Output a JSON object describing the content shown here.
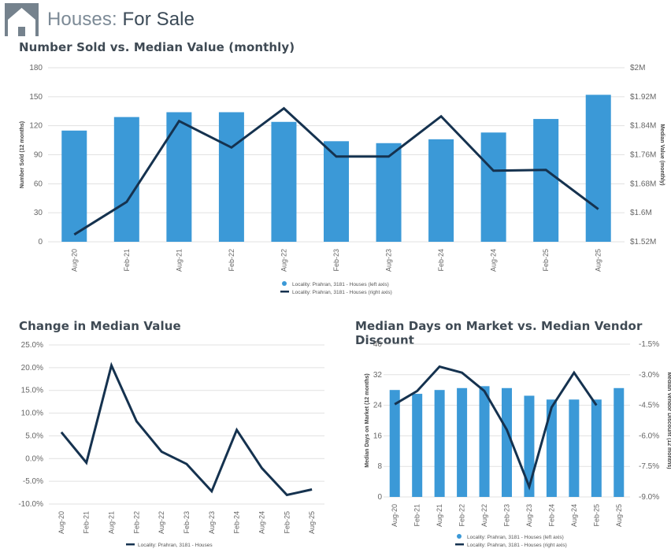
{
  "header": {
    "title_light": "Houses:",
    "title_bold": "For Sale",
    "icon": "house-icon"
  },
  "colors": {
    "bar": "#3b99d7",
    "line": "#15324f",
    "grid": "#e1e1e1",
    "axis_text": "#666666",
    "title": "#3f4a54"
  },
  "chart_data": [
    {
      "id": "sold-vs-value",
      "type": "bar+line",
      "title": "Number Sold vs. Median Value (monthly)",
      "categories": [
        "Aug-20",
        "Feb-21",
        "Aug-21",
        "Feb-22",
        "Aug-22",
        "Feb-23",
        "Aug-23",
        "Feb-24",
        "Aug-24",
        "Feb-25",
        "Aug-25"
      ],
      "ylabel": "Number Sold (12 months)",
      "y2label": "Median Value (monthly)",
      "ylim": [
        0,
        180
      ],
      "yticks": [
        0,
        30,
        60,
        90,
        120,
        150,
        180
      ],
      "ytick_labels": [
        "0",
        "30",
        "60",
        "90",
        "120",
        "150",
        "180"
      ],
      "y2lim": [
        1.52,
        2.0
      ],
      "y2ticks": [
        1.52,
        1.6,
        1.68,
        1.76,
        1.84,
        1.92,
        2.0
      ],
      "y2tick_labels": [
        "$1.52M",
        "$1.6M",
        "$1.68M",
        "$1.76M",
        "$1.84M",
        "$1.92M",
        "$2M"
      ],
      "series": [
        {
          "name": "Locality: Prahran, 3181 - Houses (left axis)",
          "type": "bar",
          "axis": "left",
          "values": [
            115,
            129,
            134,
            134,
            124,
            104,
            102,
            106,
            113,
            127,
            152
          ]
        },
        {
          "name": "Locality: Prahran, 3181 - Houses (right axis)",
          "type": "line",
          "axis": "right",
          "values": [
            1.54,
            1.63,
            1.853,
            1.78,
            1.888,
            1.755,
            1.755,
            1.866,
            1.716,
            1.718,
            1.61
          ]
        }
      ],
      "legend_position": "bottom-center"
    },
    {
      "id": "change-median",
      "type": "line",
      "title": "Change in Median Value",
      "categories": [
        "Aug-20",
        "Feb-21",
        "Aug-21",
        "Feb-22",
        "Aug-22",
        "Feb-23",
        "Aug-23",
        "Feb-24",
        "Aug-24",
        "Feb-25",
        "Aug-25"
      ],
      "ylim": [
        -10,
        25
      ],
      "yticks": [
        -10,
        -5,
        0,
        5,
        10,
        15,
        20,
        25
      ],
      "ytick_labels": [
        "-10.0%",
        "-5.0%",
        "0.0%",
        "5.0%",
        "10.0%",
        "15.0%",
        "20.0%",
        "25.0%"
      ],
      "series": [
        {
          "name": "Locality: Prahran, 3181 - Houses",
          "type": "line",
          "values": [
            5.8,
            -0.9,
            20.5,
            8.2,
            1.5,
            -1.2,
            -7.2,
            6.3,
            -2.1,
            -8.0,
            -6.8
          ]
        }
      ],
      "legend_position": "bottom-center"
    },
    {
      "id": "days-vs-discount",
      "type": "bar+line",
      "title": "Median Days on Market vs. Median Vendor Discount",
      "categories": [
        "Aug-20",
        "Feb-21",
        "Aug-21",
        "Feb-22",
        "Aug-22",
        "Feb-23",
        "Aug-23",
        "Feb-24",
        "Aug-24",
        "Feb-25",
        "Aug-25"
      ],
      "ylabel": "Median Days on Market (12 months)",
      "y2label": "Median Vendor Discount (12 months)",
      "ylim": [
        0,
        40
      ],
      "yticks": [
        0,
        8,
        16,
        24,
        32,
        40
      ],
      "ytick_labels": [
        "0",
        "8",
        "16",
        "24",
        "32",
        "40"
      ],
      "y2lim": [
        -9.0,
        -1.5
      ],
      "y2ticks": [
        -9.0,
        -7.5,
        -6.0,
        -4.5,
        -3.0,
        -1.5
      ],
      "y2tick_labels": [
        "-9.0%",
        "-7.5%",
        "-6.0%",
        "-4.5%",
        "-3.0%",
        "-1.5%"
      ],
      "series": [
        {
          "name": "Locality: Prahran, 3181 - Houses (left axis)",
          "type": "bar",
          "axis": "left",
          "values": [
            28,
            27,
            28,
            28.5,
            29,
            28.5,
            26.5,
            25.5,
            25.5,
            25.5,
            28.5
          ]
        },
        {
          "name": "Locality: Prahran, 3181 - Houses (right axis)",
          "type": "line",
          "axis": "right",
          "values": [
            -4.45,
            -3.8,
            -2.6,
            -2.9,
            -3.8,
            -5.7,
            -8.5,
            -4.6,
            -2.9,
            -4.5,
            null
          ]
        }
      ],
      "legend_position": "bottom-center"
    }
  ]
}
